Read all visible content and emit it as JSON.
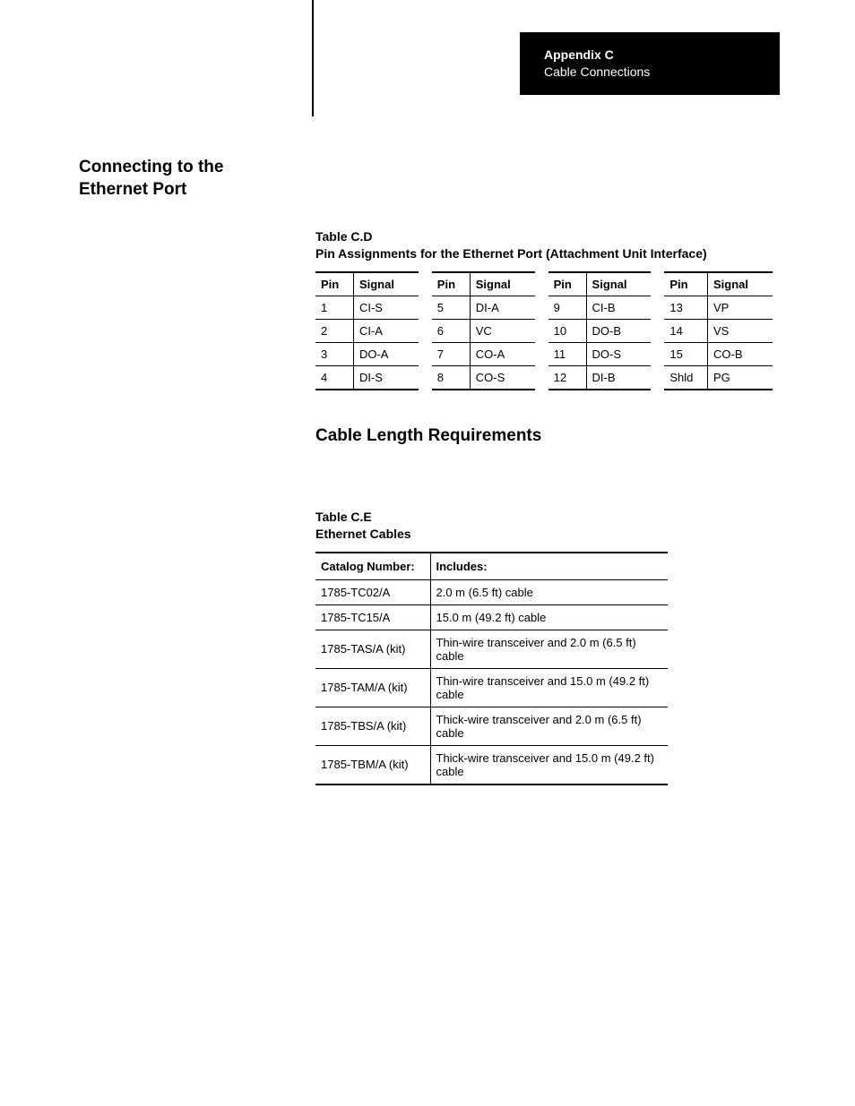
{
  "colors": {
    "page_bg": "#ffffff",
    "text": "#000000",
    "header_bg": "#000000",
    "header_text": "#ffffff",
    "rule": "#000000"
  },
  "typography": {
    "body_font": "Arial, Helvetica, sans-serif",
    "section_title_pt": 19,
    "table_caption_pt": 14,
    "table_body_pt": 13
  },
  "header": {
    "appendix": "Appendix C",
    "subtitle": "Cable Connections"
  },
  "section_title_line1": "Connecting to the",
  "section_title_line2": "Ethernet Port",
  "table_d": {
    "label": "Table C.D",
    "caption": "Pin Assignments for the Ethernet Port (Attachment Unit Interface)",
    "col_labels": {
      "pin": "Pin",
      "signal": "Signal"
    },
    "columns": 4,
    "rows": [
      [
        {
          "pin": "1",
          "signal": "CI-S"
        },
        {
          "pin": "5",
          "signal": "DI-A"
        },
        {
          "pin": "9",
          "signal": "CI-B"
        },
        {
          "pin": "13",
          "signal": "VP"
        }
      ],
      [
        {
          "pin": "2",
          "signal": "CI-A"
        },
        {
          "pin": "6",
          "signal": "VC"
        },
        {
          "pin": "10",
          "signal": "DO-B"
        },
        {
          "pin": "14",
          "signal": "VS"
        }
      ],
      [
        {
          "pin": "3",
          "signal": "DO-A"
        },
        {
          "pin": "7",
          "signal": "CO-A"
        },
        {
          "pin": "11",
          "signal": "DO-S"
        },
        {
          "pin": "15",
          "signal": "CO-B"
        }
      ],
      [
        {
          "pin": "4",
          "signal": "DI-S"
        },
        {
          "pin": "8",
          "signal": "CO-S"
        },
        {
          "pin": "12",
          "signal": "DI-B"
        },
        {
          "pin": "Shld",
          "signal": "PG"
        }
      ]
    ]
  },
  "sub_heading": "Cable Length Requirements",
  "table_e": {
    "label": "Table C.E",
    "caption": "Ethernet Cables",
    "col_labels": {
      "catalog": "Catalog Number:",
      "includes": "Includes:"
    },
    "rows": [
      {
        "catalog": "1785-TC02/A",
        "includes": "2.0 m (6.5 ft) cable"
      },
      {
        "catalog": "1785-TC15/A",
        "includes": "15.0 m (49.2 ft) cable"
      },
      {
        "catalog": "1785-TAS/A (kit)",
        "includes": "Thin-wire transceiver and 2.0 m (6.5 ft) cable"
      },
      {
        "catalog": "1785-TAM/A (kit)",
        "includes": "Thin-wire transceiver and 15.0 m (49.2 ft) cable"
      },
      {
        "catalog": "1785-TBS/A (kit)",
        "includes": "Thick-wire transceiver and 2.0 m (6.5 ft) cable"
      },
      {
        "catalog": "1785-TBM/A (kit)",
        "includes": "Thick-wire transceiver and 15.0 m (49.2 ft) cable"
      }
    ]
  }
}
